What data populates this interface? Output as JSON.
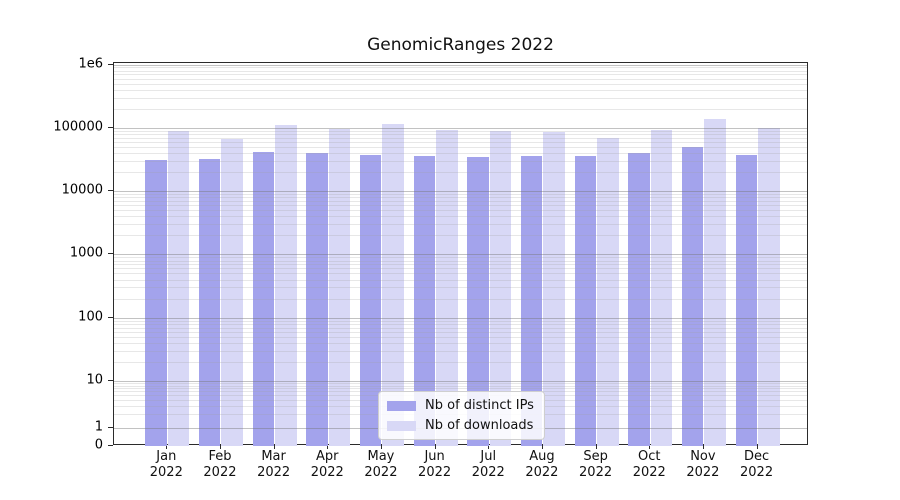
{
  "chart_data": {
    "type": "bar",
    "title": "GenomicRanges 2022",
    "categories": [
      "Jan",
      "Feb",
      "Mar",
      "Apr",
      "May",
      "Jun",
      "Jul",
      "Aug",
      "Sep",
      "Oct",
      "Nov",
      "Dec"
    ],
    "year_label": "2022",
    "series": [
      {
        "name": "Nb of distinct IPs",
        "color": "#a3a3ec",
        "values": [
          31000,
          32500,
          41000,
          39500,
          37000,
          35500,
          34000,
          36500,
          36000,
          40000,
          49000,
          37500
        ]
      },
      {
        "name": "Nb of downloads",
        "color": "#d8d8f6",
        "values": [
          88000,
          67000,
          109000,
          96000,
          113000,
          93000,
          90000,
          86000,
          69000,
          92000,
          139000,
          100000
        ]
      }
    ],
    "yscale": "symlog",
    "ylim": [
      0,
      1000000
    ],
    "ytick_labels": [
      "1e6",
      "100000",
      "10000",
      "1000",
      "100",
      "10",
      "1",
      "0"
    ],
    "grid": true,
    "legend_position": "lower center",
    "colors": {
      "major_grid": "rgba(120,120,120,0.45)",
      "minor_grid": "rgba(160,160,160,0.25)",
      "spine": "#2b2b2b"
    }
  }
}
